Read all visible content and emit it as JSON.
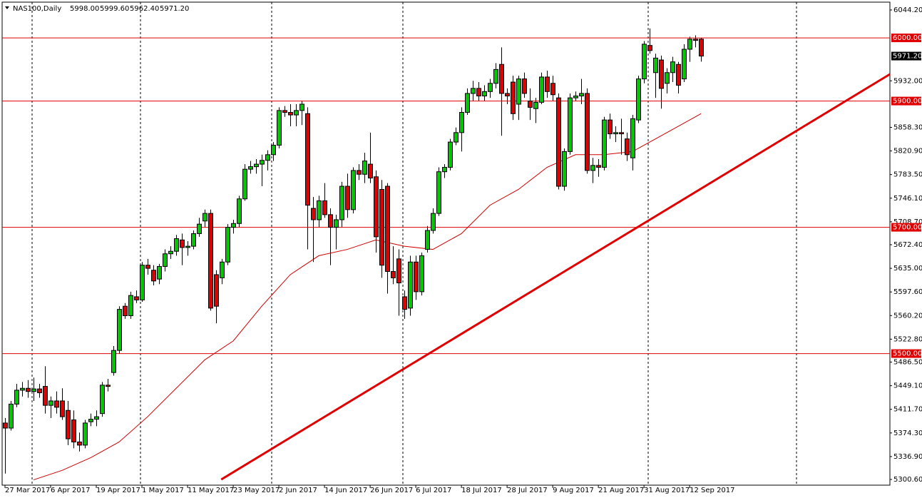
{
  "chart_data": {
    "type": "candlestick",
    "title": "NAS100,Daily",
    "ohlc_labels": [
      "5998.00",
      "5999.60",
      "5962.40",
      "5971.20"
    ],
    "up_color": "#00c800",
    "down_color": "#e00000",
    "xlim": [
      -0.5,
      155.1
    ],
    "ylim": [
      5291.6,
      6056.6
    ],
    "yticks": [
      {
        "value": 6044.2,
        "label": "6044.20"
      },
      {
        "value": 5932,
        "label": "5932.00"
      },
      {
        "value": 5858.3,
        "label": "5858.30"
      },
      {
        "value": 5820.9,
        "label": "5820.90"
      },
      {
        "value": 5783.5,
        "label": "5783.50"
      },
      {
        "value": 5746.1,
        "label": "5746.10"
      },
      {
        "value": 5708.7,
        "label": "5708.70"
      },
      {
        "value": 5672.4,
        "label": "5672.40"
      },
      {
        "value": 5635,
        "label": "5635.00"
      },
      {
        "value": 5597.6,
        "label": "5597.60"
      },
      {
        "value": 5560.2,
        "label": "5560.20"
      },
      {
        "value": 5522.8,
        "label": "5522.80"
      },
      {
        "value": 5486.5,
        "label": "5486.50"
      },
      {
        "value": 5449.1,
        "label": "5449.10"
      },
      {
        "value": 5411.7,
        "label": "5411.70"
      },
      {
        "value": 5374.3,
        "label": "5374.30"
      },
      {
        "value": 5336.9,
        "label": "5336.90"
      },
      {
        "value": 5300.6,
        "label": "5300.60"
      }
    ],
    "levels": [
      {
        "value": 6000,
        "label": "6000.00"
      },
      {
        "value": 5900,
        "label": "5900.00"
      },
      {
        "value": 5700,
        "label": "5700.00"
      },
      {
        "value": 5500,
        "label": "5500.00"
      }
    ],
    "level_color": "#e00000",
    "categories": [
      "27 Mar 2017",
      null,
      null,
      null,
      null,
      null,
      null,
      null,
      "6 Apr 2017",
      null,
      null,
      null,
      null,
      null,
      null,
      null,
      "19 Apr 2017",
      null,
      null,
      null,
      null,
      null,
      null,
      null,
      "1 May 2017",
      null,
      null,
      null,
      null,
      null,
      null,
      null,
      "11 May 2017",
      null,
      null,
      null,
      null,
      null,
      null,
      null,
      "23 May 2017",
      null,
      null,
      null,
      null,
      null,
      null,
      null,
      "2 Jun 2017",
      null,
      null,
      null,
      null,
      null,
      null,
      null,
      "14 Jun 2017",
      null,
      null,
      null,
      null,
      null,
      null,
      null,
      "26 Jun 2017",
      null,
      null,
      null,
      null,
      null,
      null,
      null,
      "6 Jul 2017",
      null,
      null,
      null,
      null,
      null,
      null,
      null,
      "18 Jul 2017",
      null,
      null,
      null,
      null,
      null,
      null,
      null,
      "28 Jul 2017",
      null,
      null,
      null,
      null,
      null,
      null,
      null,
      "9 Aug 2017",
      null,
      null,
      null,
      null,
      null,
      null,
      null,
      "21 Aug 2017",
      null,
      null,
      null,
      null,
      null,
      null,
      null,
      "31 Aug 2017",
      null,
      null,
      null,
      null,
      null,
      null,
      null,
      "12 Sep 2017",
      null,
      null
    ],
    "ohlc": [
      [
        5390,
        5398,
        5310,
        5382
      ],
      [
        5382,
        5425,
        5378,
        5420
      ],
      [
        5420,
        5452,
        5415,
        5442
      ],
      [
        5442,
        5455,
        5432,
        5445
      ],
      [
        5445,
        5458,
        5430,
        5440
      ],
      [
        5440,
        5462,
        5425,
        5444
      ],
      [
        5444,
        5452,
        5430,
        5438
      ],
      [
        5448,
        5480,
        5405,
        5418
      ],
      [
        5418,
        5432,
        5398,
        5425
      ],
      [
        5425,
        5440,
        5405,
        5415
      ],
      [
        5425,
        5445,
        5395,
        5400
      ],
      [
        5410,
        5425,
        5355,
        5365
      ],
      [
        5395,
        5410,
        5350,
        5360
      ],
      [
        5360,
        5375,
        5345,
        5355
      ],
      [
        5355,
        5395,
        5350,
        5390
      ],
      [
        5392,
        5405,
        5385,
        5396
      ],
      [
        5396,
        5410,
        5385,
        5400
      ],
      [
        5405,
        5455,
        5400,
        5450
      ],
      [
        5450,
        5460,
        5440,
        5448
      ],
      [
        5470,
        5512,
        5465,
        5505
      ],
      [
        5505,
        5575,
        5500,
        5570
      ],
      [
        5575,
        5580,
        5555,
        5560
      ],
      [
        5560,
        5598,
        5555,
        5592
      ],
      [
        5590,
        5600,
        5580,
        5585
      ],
      [
        5585,
        5645,
        5582,
        5640
      ],
      [
        5640,
        5650,
        5625,
        5635
      ],
      [
        5632,
        5640,
        5608,
        5615
      ],
      [
        5618,
        5642,
        5610,
        5638
      ],
      [
        5638,
        5665,
        5630,
        5658
      ],
      [
        5658,
        5670,
        5650,
        5662
      ],
      [
        5662,
        5688,
        5655,
        5682
      ],
      [
        5680,
        5690,
        5640,
        5668
      ],
      [
        5668,
        5678,
        5655,
        5670
      ],
      [
        5670,
        5695,
        5665,
        5690
      ],
      [
        5690,
        5715,
        5685,
        5705
      ],
      [
        5710,
        5728,
        5700,
        5722
      ],
      [
        5722,
        5728,
        5568,
        5572
      ],
      [
        5625,
        5632,
        5548,
        5575
      ],
      [
        5620,
        5650,
        5610,
        5645
      ],
      [
        5645,
        5705,
        5640,
        5700
      ],
      [
        5700,
        5712,
        5690,
        5706
      ],
      [
        5706,
        5750,
        5700,
        5745
      ],
      [
        5745,
        5800,
        5742,
        5792
      ],
      [
        5792,
        5805,
        5785,
        5796
      ],
      [
        5796,
        5808,
        5785,
        5800
      ],
      [
        5800,
        5815,
        5765,
        5806
      ],
      [
        5806,
        5822,
        5790,
        5815
      ],
      [
        5815,
        5835,
        5805,
        5830
      ],
      [
        5830,
        5890,
        5825,
        5885
      ],
      [
        5885,
        5892,
        5875,
        5882
      ],
      [
        5882,
        5895,
        5860,
        5878
      ],
      [
        5878,
        5895,
        5860,
        5885
      ],
      [
        5885,
        5900,
        5862,
        5895
      ],
      [
        5880,
        5890,
        5665,
        5735
      ],
      [
        5730,
        5748,
        5645,
        5712
      ],
      [
        5712,
        5750,
        5700,
        5742
      ],
      [
        5742,
        5770,
        5715,
        5720
      ],
      [
        5720,
        5730,
        5640,
        5700
      ],
      [
        5700,
        5720,
        5665,
        5712
      ],
      [
        5712,
        5772,
        5700,
        5765
      ],
      [
        5765,
        5785,
        5715,
        5728
      ],
      [
        5728,
        5795,
        5722,
        5790
      ],
      [
        5790,
        5800,
        5775,
        5784
      ],
      [
        5784,
        5818,
        5770,
        5805
      ],
      [
        5800,
        5850,
        5770,
        5778
      ],
      [
        5780,
        5790,
        5660,
        5685
      ],
      [
        5760,
        5775,
        5620,
        5640
      ],
      [
        5765,
        5770,
        5595,
        5630
      ],
      [
        5630,
        5670,
        5610,
        5620
      ],
      [
        5650,
        5665,
        5560,
        5612
      ],
      [
        5590,
        5600,
        5555,
        5570
      ],
      [
        5572,
        5655,
        5560,
        5645
      ],
      [
        5645,
        5655,
        5585,
        5598
      ],
      [
        5598,
        5660,
        5592,
        5655
      ],
      [
        5665,
        5702,
        5660,
        5695
      ],
      [
        5695,
        5730,
        5690,
        5722
      ],
      [
        5722,
        5795,
        5718,
        5788
      ],
      [
        5788,
        5800,
        5778,
        5795
      ],
      [
        5795,
        5840,
        5790,
        5835
      ],
      [
        5835,
        5858,
        5830,
        5850
      ],
      [
        5850,
        5890,
        5820,
        5882
      ],
      [
        5882,
        5920,
        5878,
        5912
      ],
      [
        5912,
        5932,
        5900,
        5920
      ],
      [
        5920,
        5930,
        5900,
        5908
      ],
      [
        5908,
        5925,
        5900,
        5915
      ],
      [
        5915,
        5935,
        5905,
        5928
      ],
      [
        5928,
        5960,
        5920,
        5950
      ],
      [
        5958,
        5985,
        5845,
        5912
      ],
      [
        5912,
        5920,
        5895,
        5908
      ],
      [
        5930,
        5940,
        5870,
        5880
      ],
      [
        5895,
        5940,
        5870,
        5935
      ],
      [
        5935,
        5945,
        5905,
        5912
      ],
      [
        5900,
        5920,
        5870,
        5890
      ],
      [
        5888,
        5905,
        5865,
        5898
      ],
      [
        5898,
        5945,
        5895,
        5938
      ],
      [
        5938,
        5948,
        5905,
        5915
      ],
      [
        5928,
        5940,
        5900,
        5910
      ],
      [
        5905,
        5912,
        5760,
        5765
      ],
      [
        5765,
        5825,
        5758,
        5820
      ],
      [
        5820,
        5912,
        5815,
        5905
      ],
      [
        5905,
        5915,
        5900,
        5908
      ],
      [
        5908,
        5935,
        5895,
        5912
      ],
      [
        5912,
        5920,
        5785,
        5790
      ],
      [
        5790,
        5810,
        5770,
        5798
      ],
      [
        5798,
        5808,
        5780,
        5795
      ],
      [
        5795,
        5875,
        5790,
        5870
      ],
      [
        5870,
        5880,
        5840,
        5848
      ],
      [
        5848,
        5860,
        5835,
        5850
      ],
      [
        5850,
        5872,
        5815,
        5848
      ],
      [
        5840,
        5850,
        5805,
        5815
      ],
      [
        5810,
        5878,
        5790,
        5872
      ],
      [
        5870,
        5940,
        5865,
        5935
      ],
      [
        5935,
        5995,
        5928,
        5990
      ],
      [
        5988,
        6015,
        5975,
        5980
      ],
      [
        5945,
        5975,
        5905,
        5968
      ],
      [
        5965,
        5972,
        5888,
        5920
      ],
      [
        5928,
        5952,
        5912,
        5945
      ],
      [
        5945,
        5970,
        5930,
        5962
      ],
      [
        5958,
        5962,
        5912,
        5925
      ],
      [
        5935,
        5990,
        5930,
        5982
      ],
      [
        5982,
        6002,
        5962,
        5998
      ],
      [
        5998,
        6004,
        5985,
        5996
      ],
      [
        5998,
        5999.6,
        5962.4,
        5971.2
      ]
    ],
    "ma": {
      "color": "#d00000",
      "x": [
        5,
        10,
        15,
        20,
        25,
        30,
        35,
        40,
        45,
        50,
        55,
        60,
        65,
        70,
        75,
        80,
        85,
        90,
        95,
        100,
        105,
        110,
        115,
        120,
        122
      ],
      "values": [
        5300,
        5315,
        5335,
        5360,
        5400,
        5445,
        5490,
        5520,
        5575,
        5625,
        5655,
        5665,
        5680,
        5670,
        5665,
        5690,
        5735,
        5760,
        5795,
        5815,
        5815,
        5820,
        5845,
        5870,
        5880
      ]
    },
    "trendline": {
      "color": "#e00000",
      "x": [
        37.9,
        155.1
      ],
      "y": [
        5300.6,
        5942.5
      ]
    }
  }
}
